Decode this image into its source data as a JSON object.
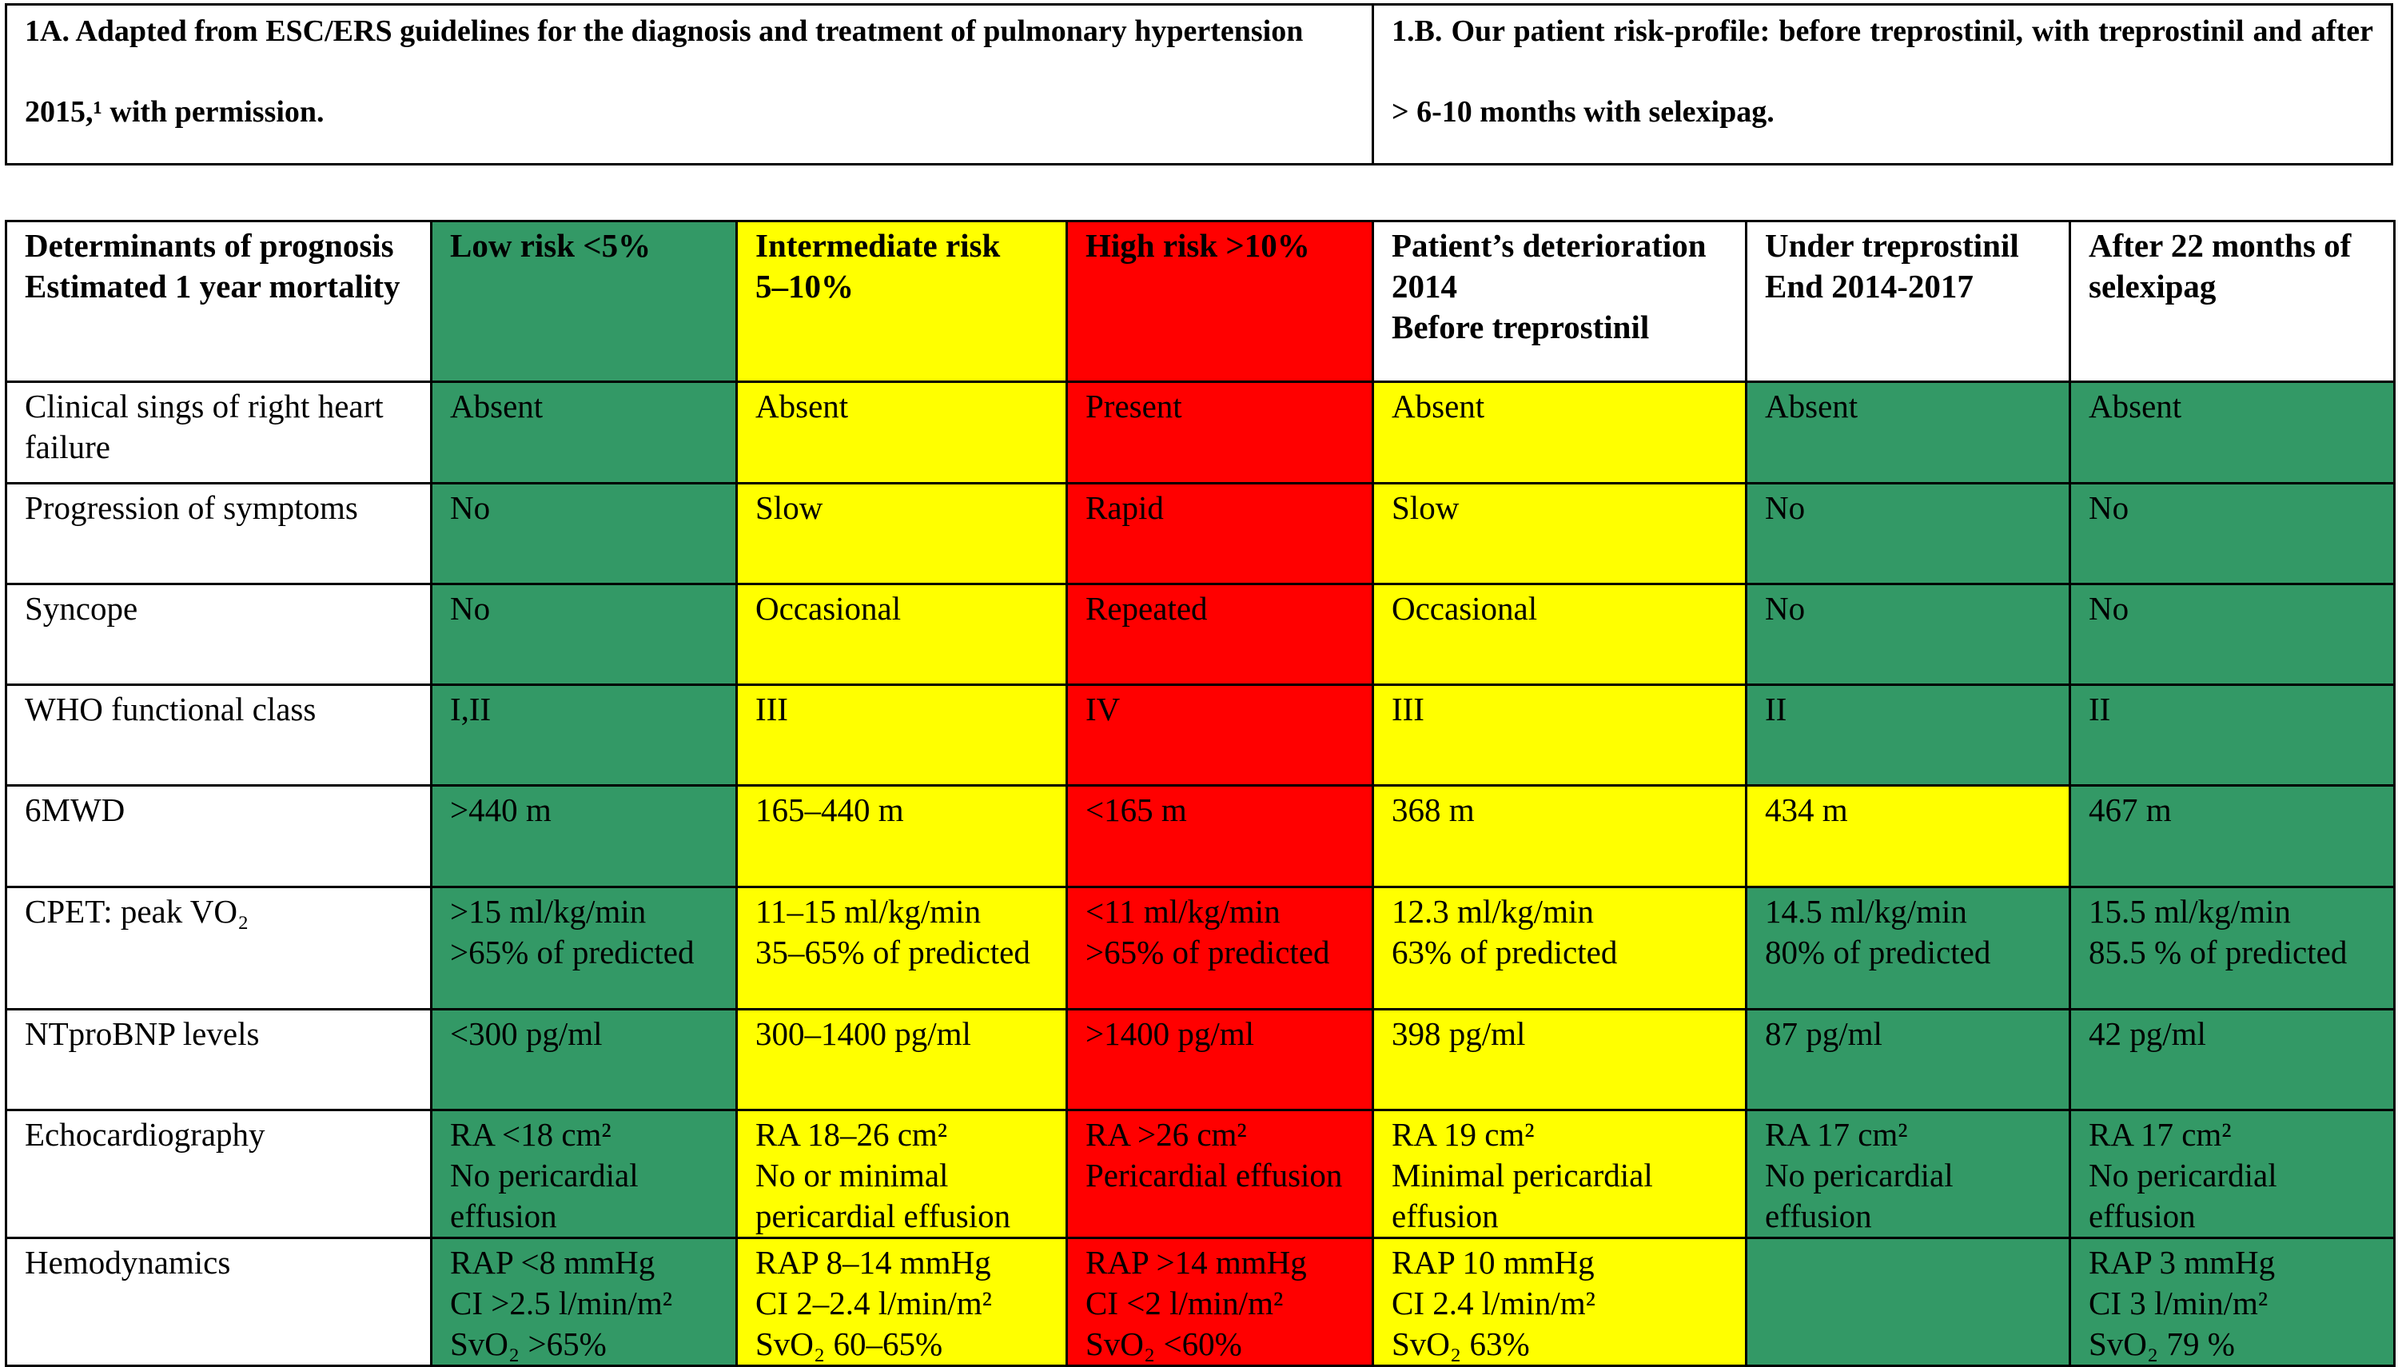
{
  "header": {
    "left": "1A. Adapted from ESC/ERS guidelines for the diagnosis and treatment of pulmonary hypertension 2015,¹ with permission.",
    "right": "1.B. Our patient risk-profile: before treprostinil, with treprostinil and after > 6-10 months with selexipag."
  },
  "table": {
    "columns": [
      {
        "text": "Determinants of prognosis\nEstimated 1 year mortality",
        "fill": "#ffffff"
      },
      {
        "text": "Low risk <5%",
        "fill": "#339966"
      },
      {
        "text": "Intermediate risk\n5–10%",
        "fill": "#ffff00"
      },
      {
        "text": "High risk >10%",
        "fill": "#ff0000"
      },
      {
        "text": "Patient’s deterioration 2014\nBefore treprostinil",
        "fill": "#ffffff"
      },
      {
        "text": "Under treprostinil\nEnd 2014-2017",
        "fill": "#ffffff"
      },
      {
        "text": "After 22 months of selexipag",
        "fill": "#ffffff"
      }
    ],
    "rows": [
      [
        {
          "text": "Clinical sings of right heart failure",
          "fill": "#ffffff"
        },
        {
          "text": "Absent",
          "fill": "#339966"
        },
        {
          "text": "Absent",
          "fill": "#ffff00"
        },
        {
          "text": "Present",
          "fill": "#ff0000"
        },
        {
          "text": "Absent",
          "fill": "#ffff00"
        },
        {
          "text": "Absent",
          "fill": "#339966"
        },
        {
          "text": "Absent",
          "fill": "#339966"
        }
      ],
      [
        {
          "text": "Progression of symptoms",
          "fill": "#ffffff"
        },
        {
          "text": "No",
          "fill": "#339966"
        },
        {
          "text": "Slow",
          "fill": "#ffff00"
        },
        {
          "text": "Rapid",
          "fill": "#ff0000"
        },
        {
          "text": "Slow",
          "fill": "#ffff00"
        },
        {
          "text": "No",
          "fill": "#339966"
        },
        {
          "text": "No",
          "fill": "#339966"
        }
      ],
      [
        {
          "text": "Syncope",
          "fill": "#ffffff"
        },
        {
          "text": "No",
          "fill": "#339966"
        },
        {
          "text": "Occasional",
          "fill": "#ffff00"
        },
        {
          "text": "Repeated",
          "fill": "#ff0000"
        },
        {
          "text": "Occasional",
          "fill": "#ffff00"
        },
        {
          "text": "No",
          "fill": "#339966"
        },
        {
          "text": "No",
          "fill": "#339966"
        }
      ],
      [
        {
          "text": "WHO functional class",
          "fill": "#ffffff"
        },
        {
          "text": "I,II",
          "fill": "#339966"
        },
        {
          "text": "III",
          "fill": "#ffff00"
        },
        {
          "text": "IV",
          "fill": "#ff0000"
        },
        {
          "text": "III",
          "fill": "#ffff00"
        },
        {
          "text": "II",
          "fill": "#339966"
        },
        {
          "text": "II",
          "fill": "#339966"
        }
      ],
      [
        {
          "text": "6MWD",
          "fill": "#ffffff"
        },
        {
          "text": ">440 m",
          "fill": "#339966"
        },
        {
          "text": "165–440 m",
          "fill": "#ffff00"
        },
        {
          "text": "<165 m",
          "fill": "#ff0000"
        },
        {
          "text": "368 m",
          "fill": "#ffff00"
        },
        {
          "text": "434 m",
          "fill": "#ffff00"
        },
        {
          "text": "467 m",
          "fill": "#339966"
        }
      ],
      [
        {
          "text": "CPET: peak VO₂",
          "fill": "#ffffff"
        },
        {
          "text": ">15 ml/kg/min\n>65% of predicted",
          "fill": "#339966"
        },
        {
          "text": "11–15 ml/kg/min\n35–65% of predicted",
          "fill": "#ffff00"
        },
        {
          "text": "<11 ml/kg/min\n>65% of predicted",
          "fill": "#ff0000"
        },
        {
          "text": "12.3 ml/kg/min\n63% of predicted",
          "fill": "#ffff00"
        },
        {
          "text": "14.5 ml/kg/min\n80% of predicted",
          "fill": "#339966"
        },
        {
          "text": "15.5 ml/kg/min\n85.5 % of predicted",
          "fill": "#339966"
        }
      ],
      [
        {
          "text": "NTproBNP levels",
          "fill": "#ffffff"
        },
        {
          "text": "<300 pg/ml",
          "fill": "#339966"
        },
        {
          "text": "300–1400 pg/ml",
          "fill": "#ffff00"
        },
        {
          "text": ">1400 pg/ml",
          "fill": "#ff0000"
        },
        {
          "text": "398 pg/ml",
          "fill": "#ffff00"
        },
        {
          "text": "87 pg/ml",
          "fill": "#339966"
        },
        {
          "text": "42 pg/ml",
          "fill": "#339966"
        }
      ],
      [
        {
          "text": "Echocardiography",
          "fill": "#ffffff"
        },
        {
          "text": "RA <18 cm²\nNo pericardial effusion",
          "fill": "#339966"
        },
        {
          "text": "RA 18–26 cm²\nNo or minimal pericardial effusion",
          "fill": "#ffff00"
        },
        {
          "text": "RA >26 cm²\nPericardial effusion",
          "fill": "#ff0000"
        },
        {
          "text": "RA 19 cm²\nMinimal pericardial effusion",
          "fill": "#ffff00"
        },
        {
          "text": "RA 17 cm²\nNo pericardial effusion",
          "fill": "#339966"
        },
        {
          "text": "RA 17 cm²\nNo pericardial effusion",
          "fill": "#339966"
        }
      ],
      [
        {
          "text": "Hemodynamics",
          "fill": "#ffffff"
        },
        {
          "text": "RAP <8 mmHg\nCI >2.5 l/min/m²\nSvO₂ >65%",
          "fill": "#339966"
        },
        {
          "text": "RAP 8–14 mmHg\nCI 2–2.4 l/min/m²\nSvO₂ 60–65%",
          "fill": "#ffff00"
        },
        {
          "text": "RAP >14 mmHg\nCI <2 l/min/m²\nSvO₂ <60%",
          "fill": "#ff0000"
        },
        {
          "text": "RAP 10 mmHg\nCI 2.4 l/min/m²\nSvO₂ 63%",
          "fill": "#ffff00"
        },
        {
          "fill": "#339966"
        },
        {
          "text": "RAP 3 mmHg\nCI 3 l/min/m²\nSvO₂ 79 %",
          "fill": "#339966"
        }
      ]
    ]
  }
}
